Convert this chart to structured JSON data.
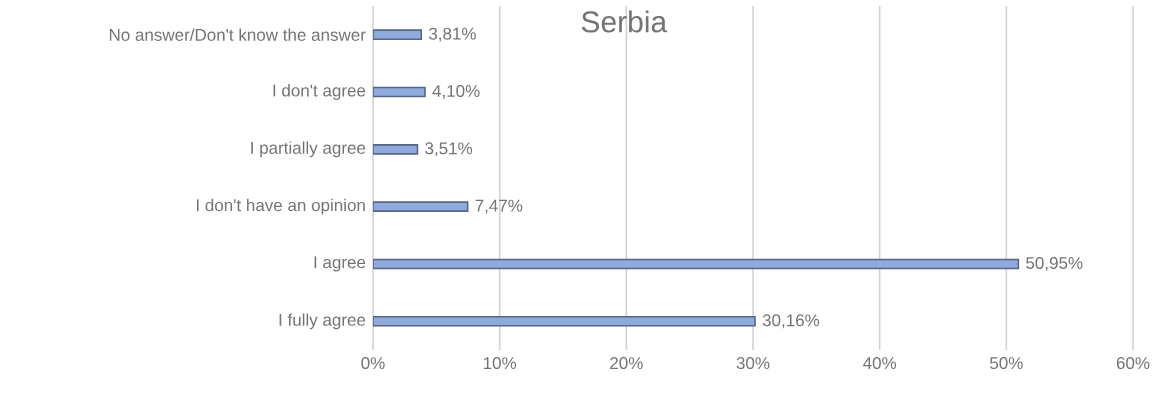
{
  "chart_data": {
    "type": "bar",
    "orientation": "horizontal",
    "title": "Serbia",
    "categories": [
      "No answer/Don't know the answer",
      "I don't agree",
      "I partially agree",
      "I don't have an opinion",
      "I agree",
      "I fully agree"
    ],
    "values": [
      3.81,
      4.1,
      3.51,
      7.47,
      50.95,
      30.16
    ],
    "value_labels": [
      "3,81%",
      "4,10%",
      "3,51%",
      "7,47%",
      "50,95%",
      "30,16%"
    ],
    "color": "#8faadc",
    "xlim": [
      0,
      60
    ],
    "xticks": [
      {
        "value": 0,
        "label": "0%"
      },
      {
        "value": 10,
        "label": "10%"
      },
      {
        "value": 20,
        "label": "20%"
      },
      {
        "value": 30,
        "label": "30%"
      },
      {
        "value": 40,
        "label": "40%"
      },
      {
        "value": 50,
        "label": "50%"
      },
      {
        "value": 60,
        "label": "60%"
      }
    ],
    "grid": "x"
  }
}
